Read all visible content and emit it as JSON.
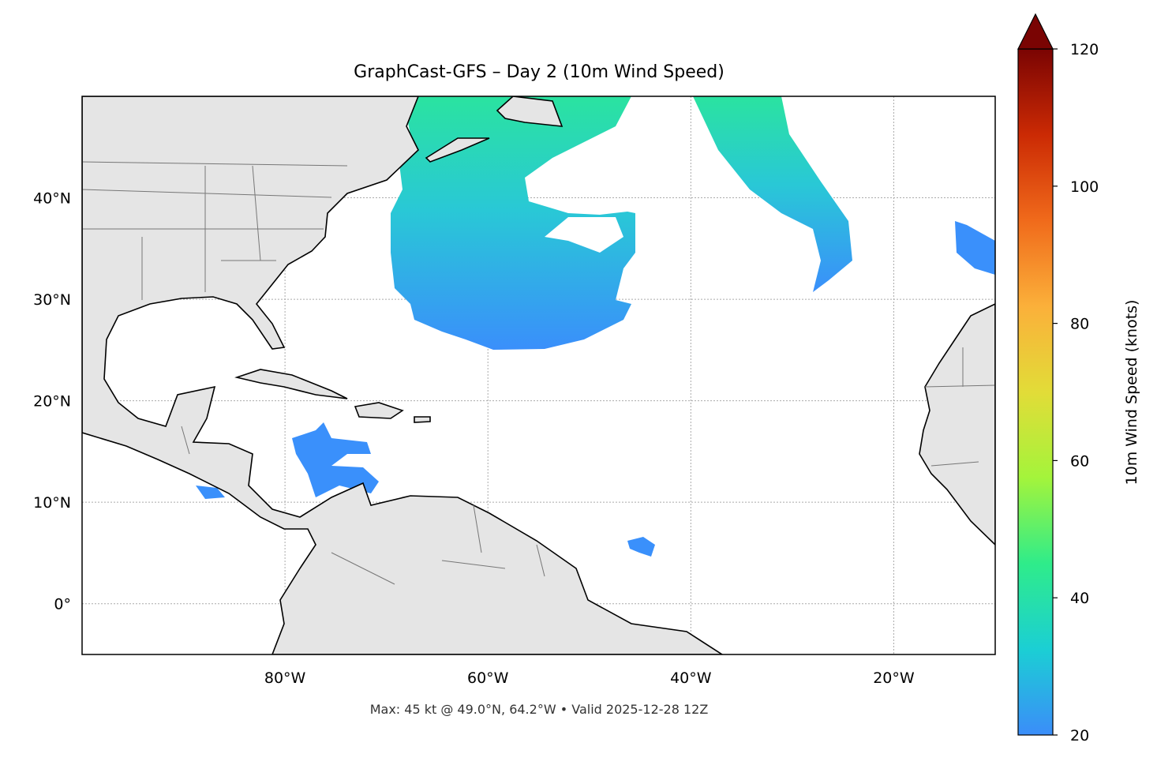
{
  "chart_data": {
    "type": "map",
    "title": "GraphCast-GFS – Day 2 (10m Wind Speed)",
    "footer": "Max: 45 kt @ 49.0°N, 64.2°W • Valid 2025-12-28 12Z",
    "xlim": [
      -100,
      -10
    ],
    "ylim": [
      -5,
      50
    ],
    "xticks": [
      {
        "value": -80,
        "label": "80°W"
      },
      {
        "value": -60,
        "label": "60°W"
      },
      {
        "value": -40,
        "label": "40°W"
      },
      {
        "value": -20,
        "label": "20°W"
      }
    ],
    "yticks": [
      {
        "value": 0,
        "label": "0°"
      },
      {
        "value": 10,
        "label": "10°N"
      },
      {
        "value": 20,
        "label": "20°N"
      },
      {
        "value": 30,
        "label": "30°N"
      },
      {
        "value": 40,
        "label": "40°N"
      }
    ],
    "grid": true,
    "colorbar": {
      "label": "10m Wind Speed (knots)",
      "lim": [
        20,
        120
      ],
      "ticks": [
        20,
        40,
        60,
        80,
        100,
        120
      ],
      "extend": "max",
      "colors": [
        "#3b8df9",
        "#1bcfd4",
        "#2fec8a",
        "#a4f43b",
        "#e2dc38",
        "#fbb03a",
        "#f06a1b",
        "#cb2a04",
        "#7a0403"
      ]
    }
  }
}
